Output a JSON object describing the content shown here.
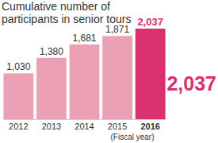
{
  "chart_data": {
    "type": "bar",
    "title": "Cumulative number of participants in senior tours",
    "categories": [
      "2012",
      "2013",
      "2014",
      "2015",
      "2016"
    ],
    "values": [
      1030,
      1380,
      1681,
      1871,
      2037
    ],
    "value_labels": [
      "1,030",
      "1,380",
      "1,681",
      "1,871",
      "2,037"
    ],
    "colors": [
      "#eba0b6",
      "#eba0b6",
      "#eba0b6",
      "#eba0b6",
      "#d9306f"
    ],
    "data_labels": true,
    "tick_labels": "x",
    "x_label": "(Fiscal year)",
    "annotation": "2,037"
  }
}
